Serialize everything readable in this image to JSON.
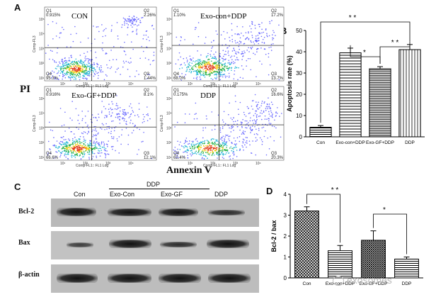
{
  "panel_labels": {
    "a": "A",
    "b": "B",
    "c": "C",
    "d": "D"
  },
  "axis_labels": {
    "pi": "PI",
    "annexin": "Annexin V"
  },
  "flow_plots": [
    {
      "title": "CON",
      "q1": "Q1",
      "q1_val": "0.915%",
      "q2": "Q2",
      "q2_val": "2.26%",
      "q3": "Q3",
      "q3_val": "1.44%",
      "q4": "Q4",
      "q4_val": "95.3%"
    },
    {
      "title": "Exo-con+DDP",
      "q1": "Q1",
      "q1_val": "1.10%",
      "q2": "Q2",
      "q2_val": "17.2%",
      "q3": "Q3",
      "q3_val": "13.7%",
      "q4": "Q4",
      "q4_val": "68.0%"
    },
    {
      "title": "Exo-GF+DDP",
      "q1": "Q1",
      "q1_val": "0.916%",
      "q2": "Q2",
      "q2_val": "8.1%",
      "q3": "Q3",
      "q3_val": "12.1%",
      "q4": "Q4",
      "q4_val": "66.6%"
    },
    {
      "title": "DDP",
      "q1": "Q1",
      "q1_val": "0.175%",
      "q2": "Q2",
      "q2_val": "16.6%",
      "q3": "Q3",
      "q3_val": "20.3%",
      "q4": "Q4",
      "q4_val": "62.4%"
    }
  ],
  "flow_axes": {
    "x_title": "Comp-FL1:: FL1 Log",
    "y_title": "Comp-FL3",
    "ticks": [
      "10¹",
      "10²",
      "10³",
      "10⁴",
      "10⁵"
    ]
  },
  "western": {
    "ddp_header": "DDP",
    "lanes": [
      "Con",
      "Exo-Con",
      "Exo-GF",
      "DDP"
    ],
    "rows": [
      "Bcl-2",
      "Bax",
      "β-actin"
    ]
  },
  "chart_data": [
    {
      "type": "bar",
      "title": "",
      "ylabel": "Apoptosis rate (%)",
      "xlabel": "",
      "categories": [
        "Con",
        "Exo-con+DDP",
        "Exo-GF+DDP",
        "DDP"
      ],
      "values": [
        4.5,
        39.5,
        32,
        41
      ],
      "errors": [
        0.8,
        2.2,
        1.0,
        2.4
      ],
      "ylim": [
        0,
        50
      ],
      "yticks": [
        "0",
        "10",
        "20",
        "30",
        "40",
        "50"
      ],
      "significance": [
        "* *",
        "*",
        "* *"
      ]
    },
    {
      "type": "bar",
      "title": "",
      "ylabel": "Bcl-2 / bax",
      "xlabel": "",
      "categories": [
        "Con",
        "Exo-con+DDP",
        "Exo-GF+DDP",
        "DDP"
      ],
      "values": [
        3.2,
        1.3,
        1.8,
        0.9
      ],
      "errors": [
        0.2,
        0.25,
        0.45,
        0.1
      ],
      "ylim": [
        0,
        4
      ],
      "yticks": [
        "0",
        "1",
        "2",
        "3",
        "4"
      ],
      "significance": [
        "* *",
        "*"
      ]
    }
  ],
  "watermark": "exosomes"
}
